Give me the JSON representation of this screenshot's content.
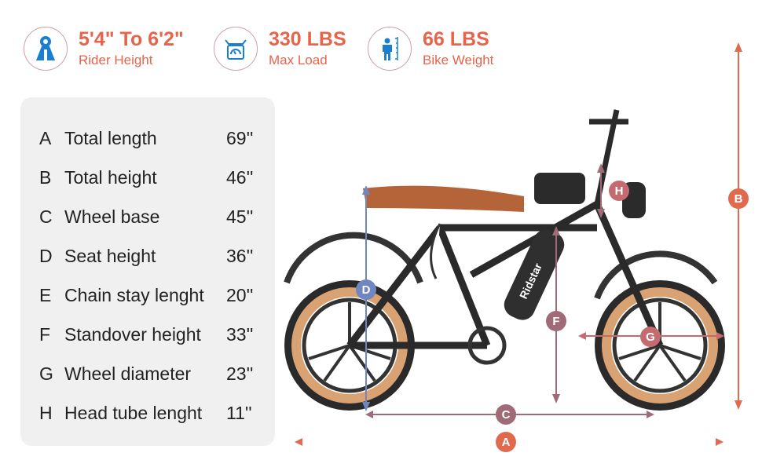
{
  "stats": [
    {
      "value": "5'4\" To 6'2\"",
      "label": "Rider Height",
      "icon": "rider-height-icon"
    },
    {
      "value": "330 LBS",
      "label": "Max Load",
      "icon": "scale-icon"
    },
    {
      "value": "66 LBS",
      "label": "Bike Weight",
      "icon": "person-ruler-icon"
    }
  ],
  "specs": [
    {
      "key": "A",
      "name": "Total length",
      "value": "69''"
    },
    {
      "key": "B",
      "name": "Total height",
      "value": "46''"
    },
    {
      "key": "C",
      "name": "Wheel base",
      "value": "45''"
    },
    {
      "key": "D",
      "name": "Seat height",
      "value": "36''"
    },
    {
      "key": "E",
      "name": "Chain stay lenght",
      "value": "20''"
    },
    {
      "key": "F",
      "name": "Standover height",
      "value": "33''"
    },
    {
      "key": "G",
      "name": "Wheel diameter",
      "value": "23''"
    },
    {
      "key": "H",
      "name": "Head tube lenght",
      "value": "11''"
    }
  ],
  "bike": {
    "brand": "Ridstar"
  },
  "markers": {
    "A": "A",
    "B": "B",
    "C": "C",
    "D": "D",
    "F": "F",
    "G": "G",
    "H": "H"
  },
  "colors": {
    "accent": "#e8634a",
    "icon_blue": "#1a7fd0",
    "panel": "#f0f0f0",
    "tire": "#d9a273",
    "seat": "#b5643a"
  }
}
